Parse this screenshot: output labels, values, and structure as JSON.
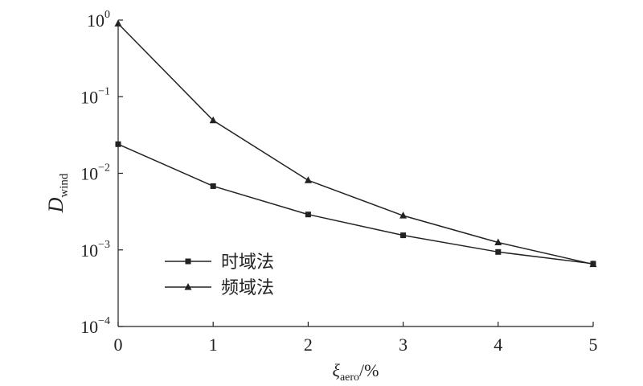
{
  "chart_data": {
    "type": "line",
    "x": [
      0,
      1,
      2,
      3,
      4,
      5
    ],
    "series": [
      {
        "name": "时域法",
        "marker": "square",
        "values": [
          0.024,
          0.0068,
          0.0029,
          0.00155,
          0.00094,
          0.00066
        ]
      },
      {
        "name": "频域法",
        "marker": "triangle",
        "values": [
          0.9,
          0.049,
          0.0081,
          0.0028,
          0.00125,
          0.00065
        ]
      }
    ],
    "xlabel": {
      "main": "ξ",
      "sub": "aero",
      "suffix": "/%"
    },
    "ylabel": {
      "main": "D",
      "sub": "wind"
    },
    "xlim": [
      0,
      5
    ],
    "ylim": [
      0.0001,
      1
    ],
    "yscale": "log",
    "xticks": [
      "0",
      "1",
      "2",
      "3",
      "4",
      "5"
    ],
    "yticks": [
      {
        "base": "10",
        "exp": "0"
      },
      {
        "base": "10",
        "exp": "−1"
      },
      {
        "base": "10",
        "exp": "−2"
      },
      {
        "base": "10",
        "exp": "−3"
      },
      {
        "base": "10",
        "exp": "−4"
      }
    ],
    "legend_position": "lower-left",
    "grid": false,
    "line_color": "#222222"
  }
}
